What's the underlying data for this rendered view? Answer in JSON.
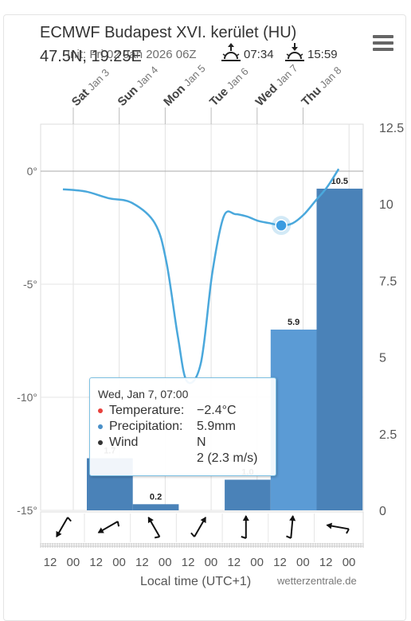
{
  "header": {
    "title": "ECMWF Budapest XVI. kerület (HU)",
    "coords": "47.5N, 19.25E",
    "init": "Init: Fri 02 Jan 2026 06Z",
    "sunrise": "07:34",
    "sunset": "15:59",
    "sunrise_icon": "sunrise-icon",
    "sunset_icon": "sunset-icon"
  },
  "menu": {
    "icon": "hamburger-menu-icon"
  },
  "tooltip": {
    "header": "Wed, Jan 7, 07:00",
    "temp_label": "Temperature:",
    "temp_value": "−2.4°C",
    "precip_label": "Precipitation:",
    "precip_value": "5.9mm",
    "wind_label": "Wind",
    "wind_dir": "N",
    "wind_speed": "2 (2.3 m/s)",
    "temp_color": "#e8413c",
    "precip_color": "#4a90c8",
    "wind_color": "#333333"
  },
  "footer": {
    "xlabel": "Local time (UTC+1)",
    "credit": "wetterzentrale.de"
  },
  "chart_data": {
    "type": "bar+line",
    "days": [
      "Sat Jan 3",
      "Sun Jan 4",
      "Mon Jan 5",
      "Tue Jan 6",
      "Wed Jan 7",
      "Thu Jan 8"
    ],
    "time_ticks": [
      "12",
      "00",
      "12",
      "00",
      "12",
      "00",
      "12",
      "00",
      "12",
      "00",
      "12",
      "00",
      "12",
      "00"
    ],
    "y_left": {
      "ticks": [
        "0°",
        "-5°",
        "-10°",
        "-15°"
      ],
      "values": [
        0,
        -5,
        -10,
        -15
      ],
      "range": [
        -15,
        2.5
      ]
    },
    "y_right": {
      "ticks": [
        "12.5",
        "10",
        "7.5",
        "5",
        "2.5",
        "0"
      ],
      "values": [
        12.5,
        10,
        7.5,
        5,
        2.5,
        0
      ],
      "range": [
        0,
        12.5
      ]
    },
    "precipitation": {
      "name": "Precipitation",
      "bars": [
        {
          "x0": 1.0,
          "x1": 2.0,
          "value": 1.7,
          "label": "1.7"
        },
        {
          "x0": 2.0,
          "x1": 3.0,
          "value": 0.2,
          "label": "0.2"
        },
        {
          "x0": 4.0,
          "x1": 5.0,
          "value": 1.0,
          "label": "1.0"
        },
        {
          "x0": 5.0,
          "x1": 6.0,
          "value": 5.9,
          "label": "5.9"
        },
        {
          "x0": 6.0,
          "x1": 7.0,
          "value": 10.5,
          "label": "10.5"
        }
      ],
      "color": "#4a82b8",
      "highlight_color": "#5b9bd5"
    },
    "temperature": {
      "name": "Temperature",
      "color": "#4aa8dc",
      "x": [
        0.5,
        1.0,
        1.5,
        2.0,
        2.5,
        2.75,
        3.0,
        3.2,
        3.5,
        3.75,
        4.0,
        4.25,
        4.5,
        4.75,
        5.0,
        5.25,
        5.5,
        5.75,
        6.0,
        6.25,
        6.5
      ],
      "y": [
        -0.8,
        -0.9,
        -1.2,
        -1.4,
        -2.3,
        -4.0,
        -7.3,
        -9.3,
        -8.5,
        -4.5,
        -2.0,
        -1.9,
        -2.0,
        -2.2,
        -2.3,
        -2.4,
        -2.3,
        -1.9,
        -1.3,
        -0.7,
        0.1
      ],
      "highlight": {
        "x": 5.25,
        "y": -2.4
      }
    },
    "wind": {
      "name": "Wind",
      "directions_deg": [
        30,
        60,
        150,
        210,
        180,
        185,
        100
      ]
    }
  }
}
